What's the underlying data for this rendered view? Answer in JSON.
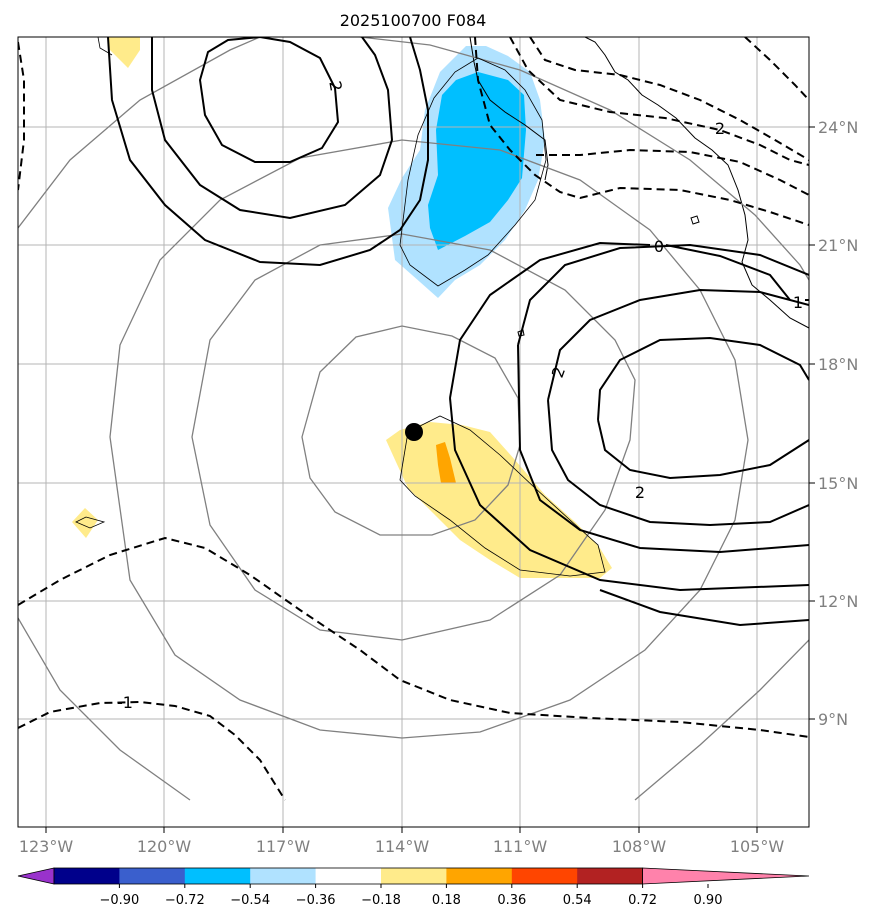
{
  "title": "2025100700 F084",
  "lon_ticks": [
    "123°W",
    "120°W",
    "117°W",
    "114°W",
    "111°W",
    "108°W",
    "105°W"
  ],
  "lat_ticks": [
    "24°N",
    "21°N",
    "18°N",
    "15°N",
    "12°N",
    "9°N"
  ],
  "contour_labels": [
    "2",
    "2",
    "0",
    "1",
    "2",
    "2",
    "-1"
  ],
  "colorbar": {
    "labels": [
      "−0.90",
      "−0.72",
      "−0.54",
      "−0.36",
      "−0.18",
      "0.18",
      "0.36",
      "0.54",
      "0.72",
      "0.90"
    ],
    "colors": [
      "#9932cc",
      "#00008b",
      "#3a5fcd",
      "#00bfff",
      "#b0e2ff",
      "#ffffff",
      "#ffeb8b",
      "#ffa500",
      "#ff4500",
      "#b22222",
      "#ff82ab"
    ]
  },
  "storm_center": {
    "lon": -113.7,
    "lat": 16.2
  }
}
